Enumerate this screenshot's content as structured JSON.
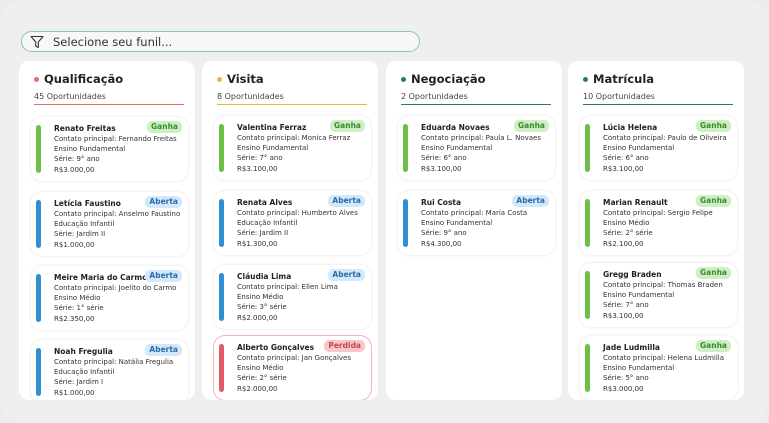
{
  "funnel": {
    "placeholder": "Selecione seu funil..."
  },
  "colors": {
    "qualificacao": "#e56a6a",
    "visita": "#e8b93a",
    "negociacao": "#2e7d4f",
    "matricula": "#2e7d4f",
    "bar_green": "#6cc04a",
    "bar_blue": "#2f8fd0",
    "bar_red": "#e25b64"
  },
  "columns": [
    {
      "title": "Qualificação",
      "count": "45 Oportunidades",
      "cards": [
        {
          "name": "Renato Freitas",
          "status": "Ganha",
          "contact": "Contato principal: Fernando Freitas",
          "level": "Ensino Fundamental",
          "grade": "Série: 9° ano",
          "value": "R$3.000,00"
        },
        {
          "name": "Letícia Faustino",
          "status": "Aberta",
          "contact": "Contato principal: Anselmo Faustino",
          "level": "Educação Infantil",
          "grade": "Série: Jardim II",
          "value": "R$1.000,00"
        },
        {
          "name": "Meire Maria do Carmo",
          "status": "Aberta",
          "contact": "Contato principal: Joelito do Carmo",
          "level": "Ensino Médio",
          "grade": "Série: 1° série",
          "value": "R$2.350,00"
        },
        {
          "name": "Noah Fregulia",
          "status": "Aberta",
          "contact": "Contato principal: Natália Fregulia",
          "level": "Educação Infantil",
          "grade": "Série: Jardim I",
          "value": "R$1.000,00"
        }
      ]
    },
    {
      "title": "Visita",
      "count": "8 Oportunidades",
      "cards": [
        {
          "name": "Valentina Ferraz",
          "status": "Ganha",
          "contact": "Contato principal: Monica Ferraz",
          "level": "Ensino Fundamental",
          "grade": "Série: 7° ano",
          "value": "R$3.100,00"
        },
        {
          "name": "Renata Alves",
          "status": "Aberta",
          "contact": "Contato principal: Humberto Alves",
          "level": "Educação Infantil",
          "grade": "Série: Jardim II",
          "value": "R$1.300,00"
        },
        {
          "name": "Cláudia Lima",
          "status": "Aberta",
          "contact": "Contato principal: Ellen Lima",
          "level": "Ensino Médio",
          "grade": "Série: 3° série",
          "value": "R$2.000,00"
        },
        {
          "name": "Alberto Gonçalves",
          "status": "Perdida",
          "contact": "Contato principal: Jan Gonçalves",
          "level": "Ensino Médio",
          "grade": "Série: 2° série",
          "value": "R$2.000,00"
        }
      ]
    },
    {
      "title": "Negociação",
      "count": "2 Oportunidades",
      "cards": [
        {
          "name": "Eduarda Novaes",
          "status": "Ganha",
          "contact": "Contato principal: Paula L. Novaes",
          "level": "Ensino Fundamental",
          "grade": "Série: 6° ano",
          "value": "R$3.100,00"
        },
        {
          "name": "Rui Costa",
          "status": "Aberta",
          "contact": "Contato principal: Maria Costa",
          "level": "Ensino Fundamental",
          "grade": "Série: 9° ano",
          "value": "R$4.300,00"
        }
      ]
    },
    {
      "title": "Matrícula",
      "count": "10 Oportunidades",
      "cards": [
        {
          "name": "Lúcia Helena",
          "status": "Ganha",
          "contact": "Contato principal: Paulo de Oliveira",
          "level": "Ensino Fundamental",
          "grade": "Série: 6° ano",
          "value": "R$3.100,00"
        },
        {
          "name": "Marian Renault",
          "status": "Ganha",
          "contact": "Contato principal: Sergio Felipe",
          "level": "Ensino Médio",
          "grade": "Série: 2° série",
          "value": "R$2.100,00"
        },
        {
          "name": "Gregg Braden",
          "status": "Ganha",
          "contact": "Contato principal: Thomas Braden",
          "level": "Ensino Fundamental",
          "grade": "Série: 7° ano",
          "value": "R$3.100,00"
        },
        {
          "name": "Jade Ludmilla",
          "status": "Ganha",
          "contact": "Contato principal: Helena Ludmilla",
          "level": "Ensino Fundamental",
          "grade": "Série: 5° ano",
          "value": "R$3.000,00"
        }
      ]
    }
  ]
}
